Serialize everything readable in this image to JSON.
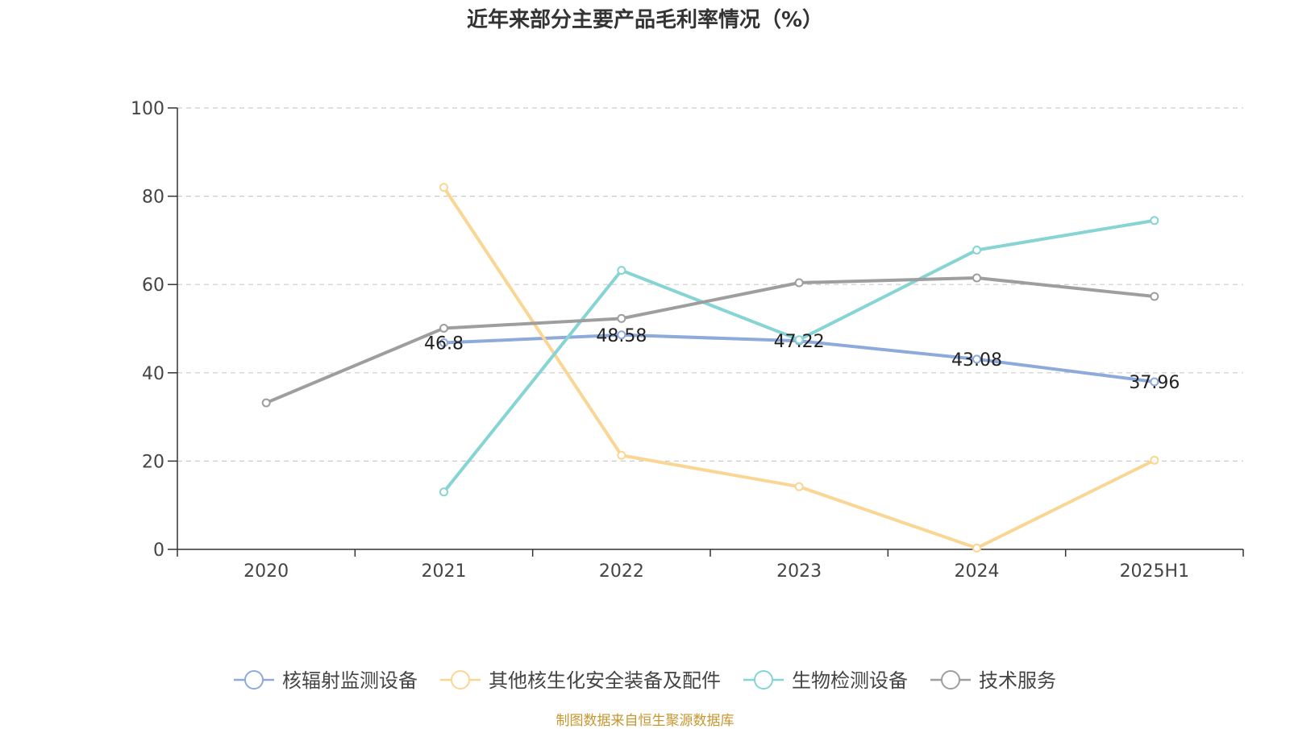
{
  "chart_data": {
    "type": "line",
    "title": "近年来部分主要产品毛利率情况（%）",
    "categories": [
      "2020",
      "2021",
      "2022",
      "2023",
      "2024",
      "2025H1"
    ],
    "ylim": [
      0,
      100
    ],
    "yticks": [
      0,
      20,
      40,
      60,
      80,
      100
    ],
    "grid": true,
    "legend_position": "bottom",
    "series": [
      {
        "name": "核辐射监测设备",
        "color": "#8eaadb",
        "show_labels": true,
        "values": [
          null,
          46.8,
          48.58,
          47.22,
          43.08,
          37.96
        ],
        "labels": [
          "",
          "46.8",
          "48.58",
          "47.22",
          "43.08",
          "37.96"
        ]
      },
      {
        "name": "其他核生化安全装备及配件",
        "color": "#fad694",
        "show_labels": false,
        "values": [
          null,
          82,
          21.3,
          14.2,
          0.3,
          20.2
        ]
      },
      {
        "name": "生物检测设备",
        "color": "#86d4d4",
        "show_labels": false,
        "values": [
          null,
          13,
          63.2,
          47.5,
          67.8,
          74.5
        ]
      },
      {
        "name": "技术服务",
        "color": "#9e9e9e",
        "show_labels": false,
        "values": [
          33.2,
          50.1,
          52.3,
          60.4,
          61.5,
          57.3
        ]
      }
    ]
  },
  "source_note": "制图数据来自恒生聚源数据库"
}
